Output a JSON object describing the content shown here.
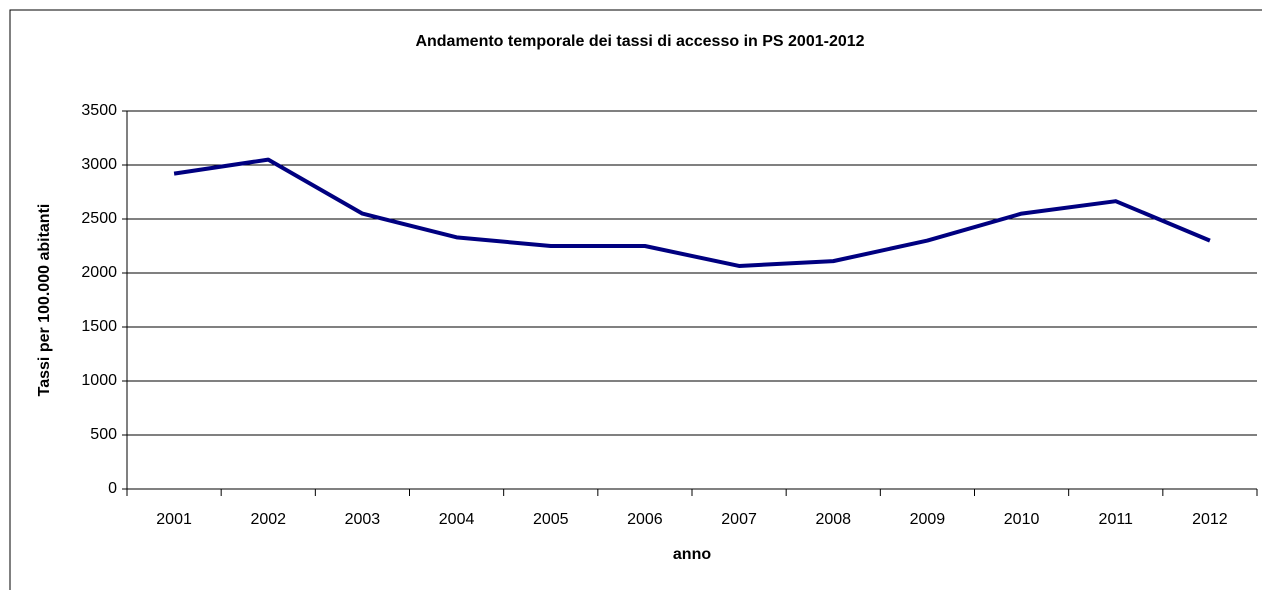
{
  "chart_data": {
    "type": "line",
    "title": "Andamento temporale dei tassi di accesso in PS 2001-2012",
    "xlabel": "anno",
    "ylabel": "Tassi per 100.000 abitanti",
    "categories": [
      "2001",
      "2002",
      "2003",
      "2004",
      "2005",
      "2006",
      "2007",
      "2008",
      "2009",
      "2010",
      "2011",
      "2012"
    ],
    "series": [
      {
        "color": "#000080",
        "values": [
          2920,
          3050,
          2550,
          2330,
          2250,
          2250,
          2065,
          2110,
          2300,
          2550,
          2665,
          2300
        ]
      }
    ],
    "ylim": [
      0,
      3500
    ],
    "yticks": [
      0,
      500,
      1000,
      1500,
      2000,
      2500,
      3000,
      3500
    ],
    "grid": true
  }
}
